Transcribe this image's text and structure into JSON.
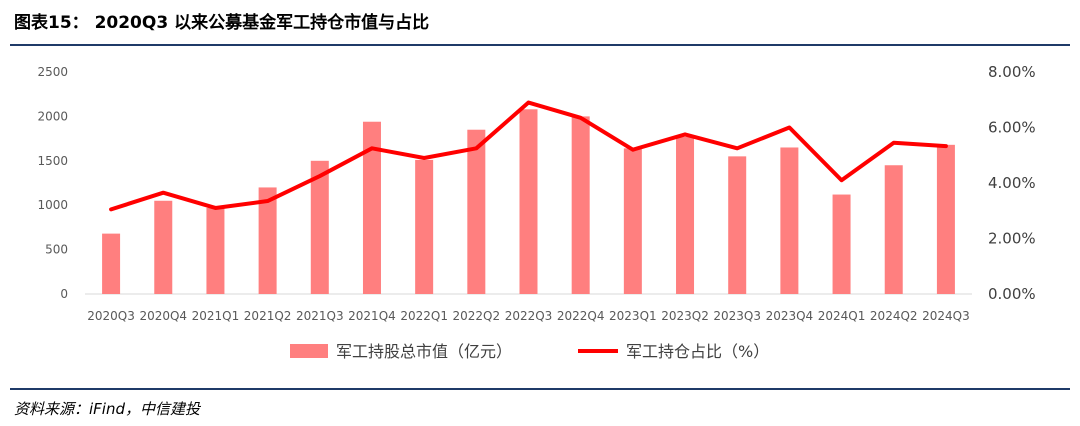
{
  "title": "图表15： 2020Q3 以来公募基金军工持仓市值与占比",
  "source": "资料来源：iFind，中信建投",
  "colors": {
    "bar": "#ff7f7f",
    "line": "#ff0000",
    "rule": "#1f3a68"
  },
  "chart_data": {
    "type": "bar+line",
    "categories": [
      "2020Q3",
      "2020Q4",
      "2021Q1",
      "2021Q2",
      "2021Q3",
      "2021Q4",
      "2022Q1",
      "2022Q2",
      "2022Q3",
      "2022Q4",
      "2023Q1",
      "2023Q2",
      "2023Q3",
      "2023Q4",
      "2024Q1",
      "2024Q2",
      "2024Q3"
    ],
    "series": [
      {
        "name": "军工持股总市值（亿元）",
        "type": "bar",
        "axis": "left",
        "values": [
          680,
          1050,
          970,
          1200,
          1500,
          1940,
          1510,
          1850,
          2080,
          2000,
          1640,
          1770,
          1550,
          1650,
          1120,
          1450,
          1680
        ]
      },
      {
        "name": "军工持仓占比（%）",
        "type": "line",
        "axis": "right",
        "values": [
          3.05,
          3.65,
          3.1,
          3.35,
          4.25,
          5.25,
          4.9,
          5.25,
          6.9,
          6.35,
          5.2,
          5.75,
          5.25,
          6.0,
          4.1,
          5.45,
          5.33
        ]
      }
    ],
    "y_left": {
      "min": 0,
      "max": 2500,
      "ticks": [
        "0",
        "500",
        "1000",
        "1500",
        "2000",
        "2500"
      ]
    },
    "y_right": {
      "min": 0,
      "max": 8,
      "ticks": [
        "0.00%",
        "2.00%",
        "4.00%",
        "6.00%",
        "8.00%"
      ]
    },
    "legend_position": "bottom"
  }
}
